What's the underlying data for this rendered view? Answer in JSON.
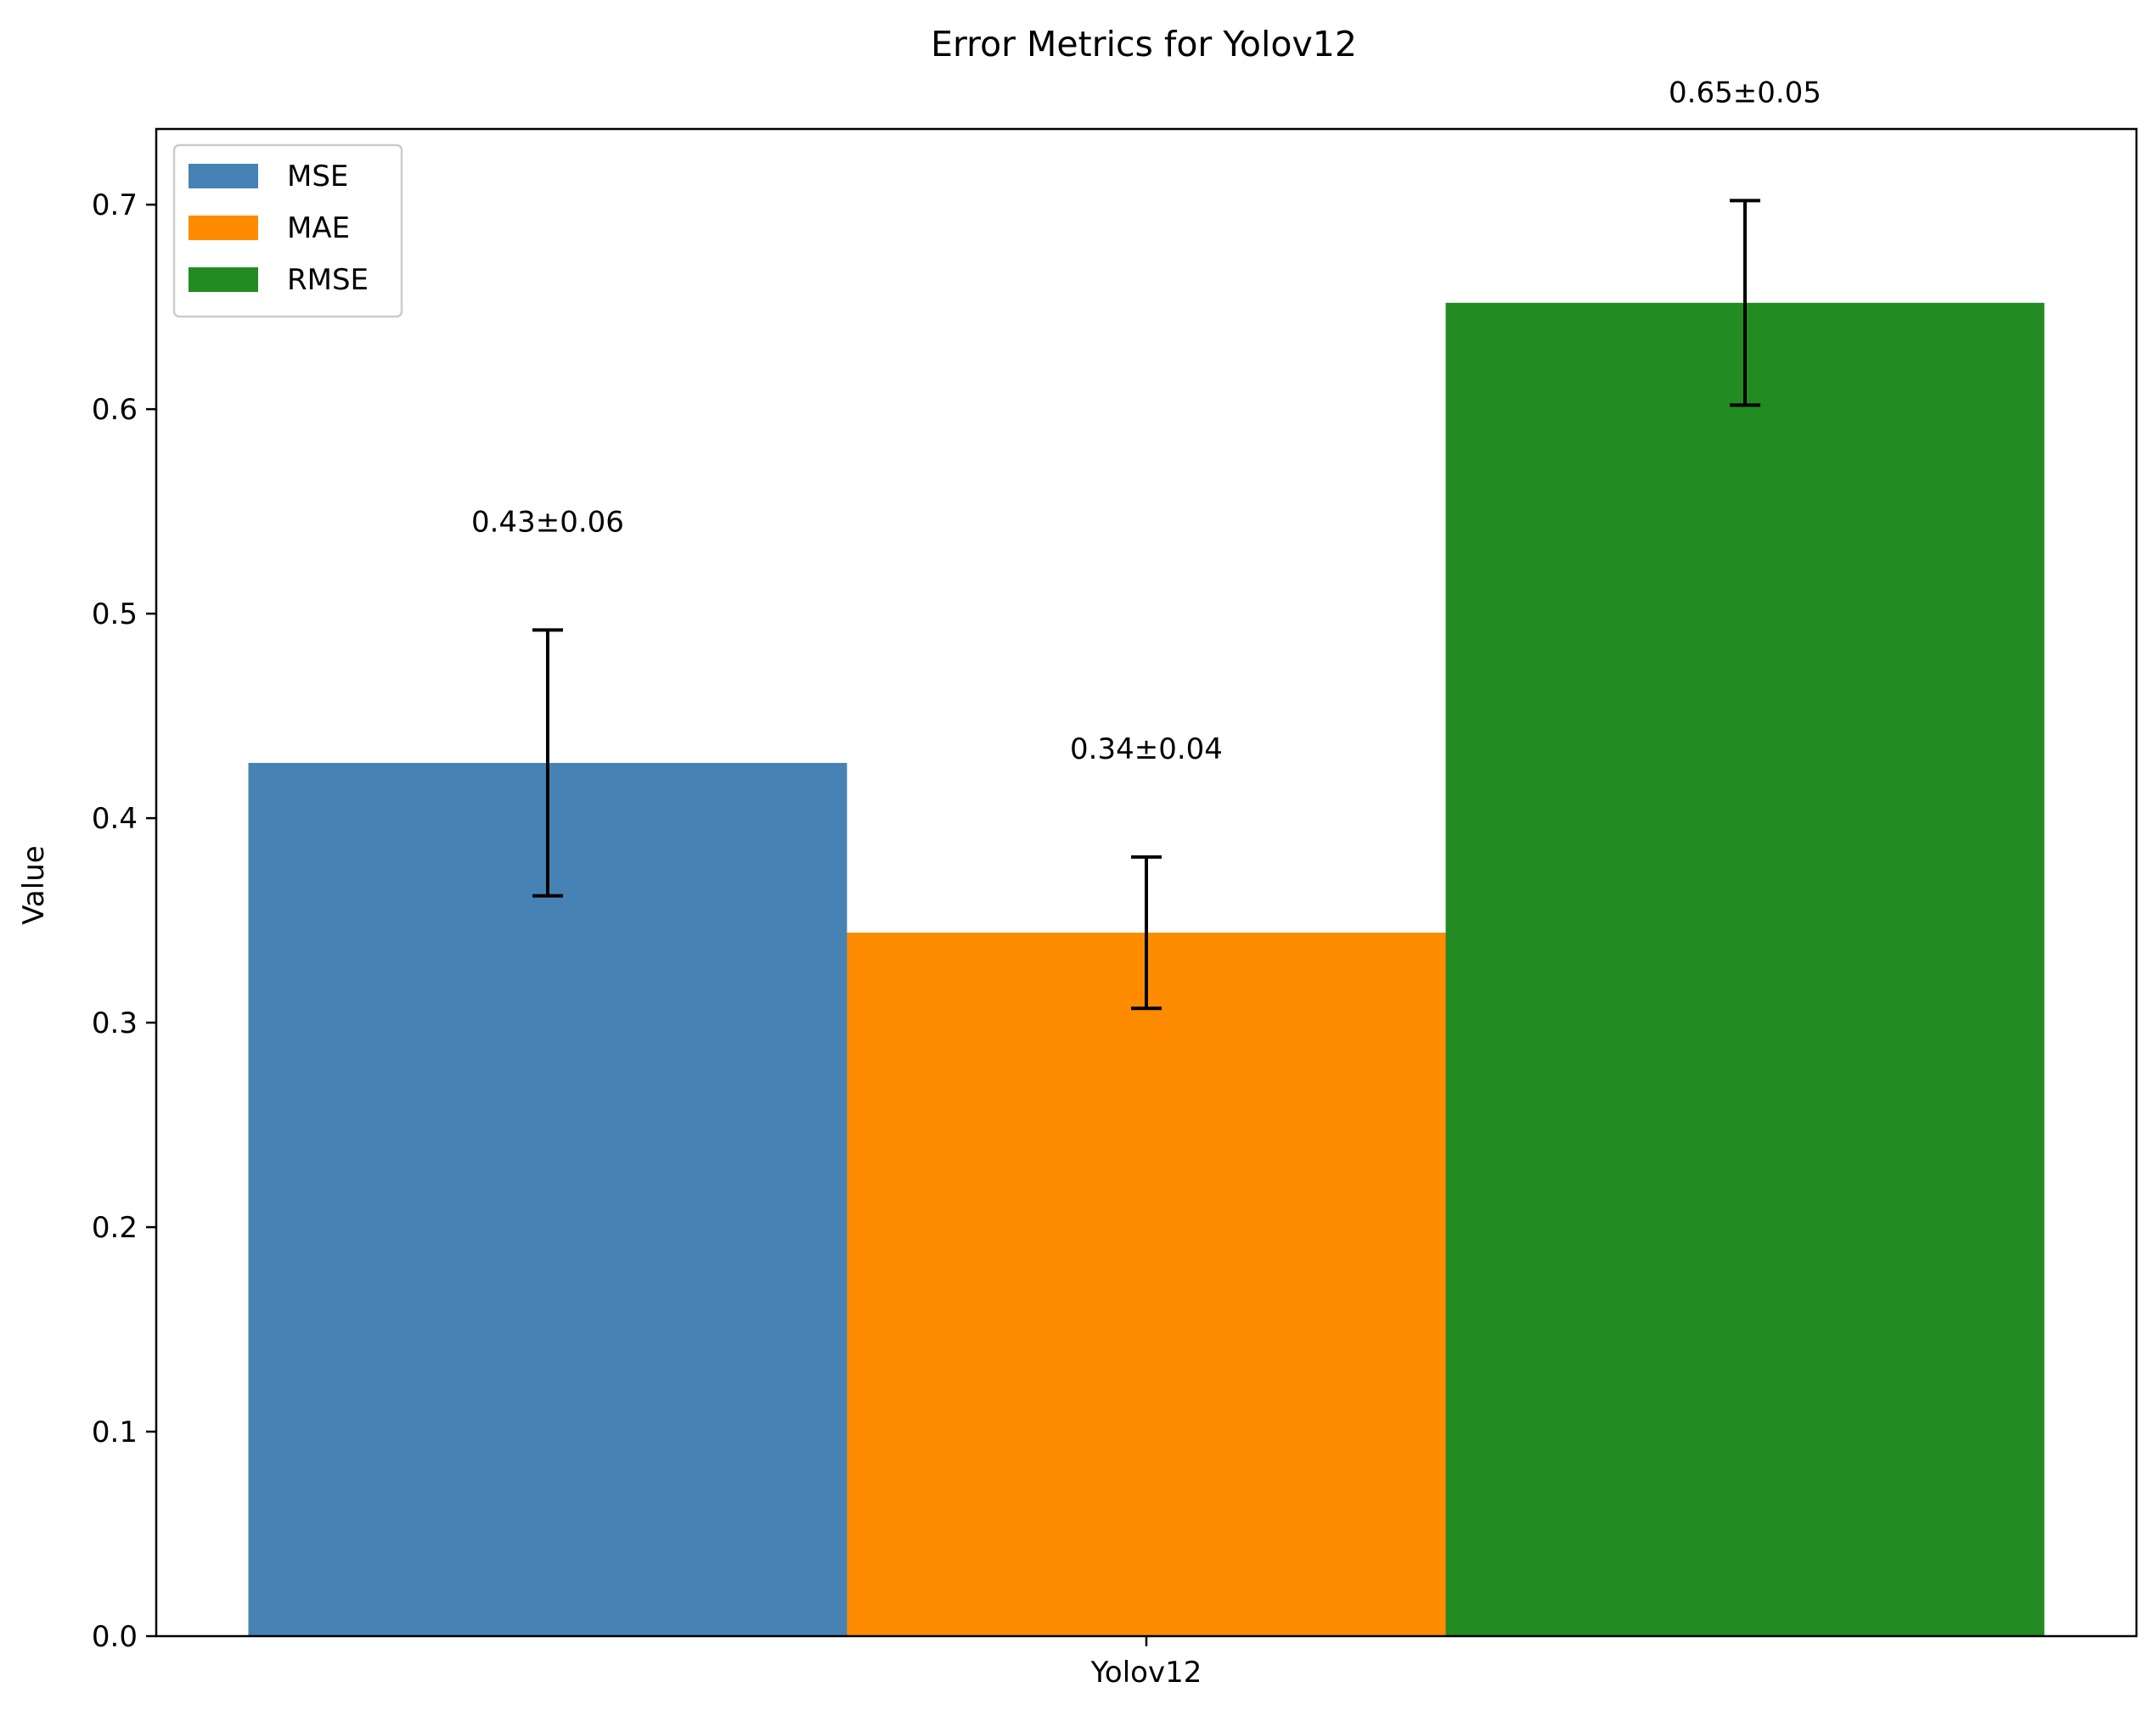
{
  "chart_data": {
    "type": "bar",
    "title": "Error Metrics for Yolov12",
    "xlabel": "",
    "ylabel": "Value",
    "categories": [
      "Yolov12"
    ],
    "ylim": [
      0,
      0.737
    ],
    "yticks": [
      "0.0",
      "0.1",
      "0.2",
      "0.3",
      "0.4",
      "0.5",
      "0.6",
      "0.7"
    ],
    "series": [
      {
        "name": "MSE",
        "values": [
          0.427
        ],
        "error": [
          0.065
        ],
        "label": "0.43±0.06",
        "color": "#4682B4"
      },
      {
        "name": "MAE",
        "values": [
          0.344
        ],
        "error": [
          0.037
        ],
        "label": "0.34±0.04",
        "color": "#FF8C00"
      },
      {
        "name": "RMSE",
        "values": [
          0.652
        ],
        "error": [
          0.05
        ],
        "label": "0.65±0.05",
        "color": "#228B22"
      }
    ],
    "legend_position": "top-left",
    "grid": false
  }
}
